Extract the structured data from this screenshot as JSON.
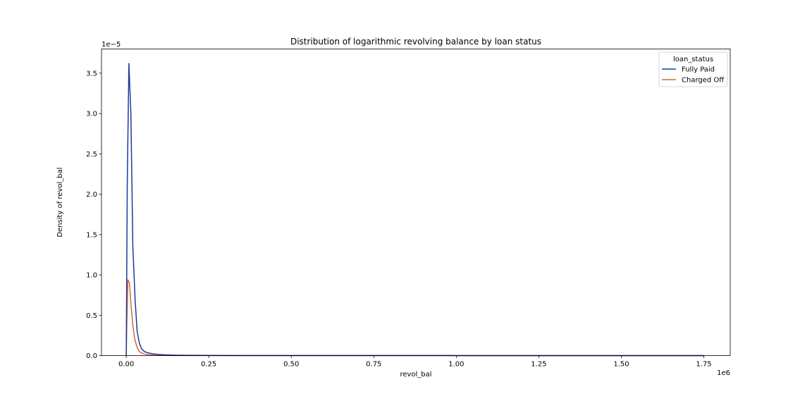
{
  "chart_data": {
    "type": "line",
    "title": "Distribution of logarithmic revolving balance by loan status",
    "xlabel": "revol_bal",
    "ylabel": "Density of revol_bal",
    "x_scale_label": "1e6",
    "y_scale_label": "1e−5",
    "xlim": [
      -75000,
      1830000
    ],
    "ylim": [
      0,
      3.8
    ],
    "x_ticks": [
      0,
      250000,
      500000,
      750000,
      1000000,
      1250000,
      1500000,
      1750000
    ],
    "x_tick_labels": [
      "0.00",
      "0.25",
      "0.50",
      "0.75",
      "1.00",
      "1.25",
      "1.50",
      "1.75"
    ],
    "y_ticks": [
      0,
      0.5,
      1.0,
      1.5,
      2.0,
      2.5,
      3.0,
      3.5
    ],
    "y_tick_labels": [
      "0.0",
      "0.5",
      "1.0",
      "1.5",
      "2.0",
      "2.5",
      "3.0",
      "3.5"
    ],
    "grid": false,
    "legend": {
      "title": "loan_status",
      "placement": "top-right"
    },
    "series": [
      {
        "name": "Fully Paid",
        "color": "#1f3a9c",
        "x": [
          0,
          3000,
          8000,
          14000,
          20000,
          27000,
          33000,
          40000,
          47000,
          55000,
          65000,
          80000,
          95000,
          115000,
          140000,
          170000,
          210000,
          260000,
          350000,
          500000,
          750000,
          1000000,
          1250000,
          1500000,
          1750000
        ],
        "y": [
          0,
          2.1,
          3.62,
          3.0,
          1.35,
          0.68,
          0.3,
          0.15,
          0.08,
          0.05,
          0.035,
          0.022,
          0.015,
          0.01,
          0.006,
          0.004,
          0.003,
          0.002,
          0.0015,
          0.001,
          0.0008,
          0.0005,
          0.0003,
          0.0002,
          0.0001
        ]
      },
      {
        "name": "Charged Off",
        "color": "#d4683a",
        "x": [
          0,
          2000,
          5000,
          10000,
          14000,
          20000,
          26000,
          33000,
          40000,
          48000,
          56000,
          65000,
          80000,
          95000,
          115000,
          150000,
          200000,
          300000,
          500000,
          800000,
          1200000,
          1750000
        ],
        "y": [
          0,
          0.45,
          0.94,
          0.9,
          0.65,
          0.37,
          0.2,
          0.1,
          0.05,
          0.03,
          0.018,
          0.011,
          0.006,
          0.004,
          0.0025,
          0.0015,
          0.001,
          0.0005,
          0.0003,
          0.0002,
          0.0001,
          5e-05
        ]
      }
    ]
  }
}
